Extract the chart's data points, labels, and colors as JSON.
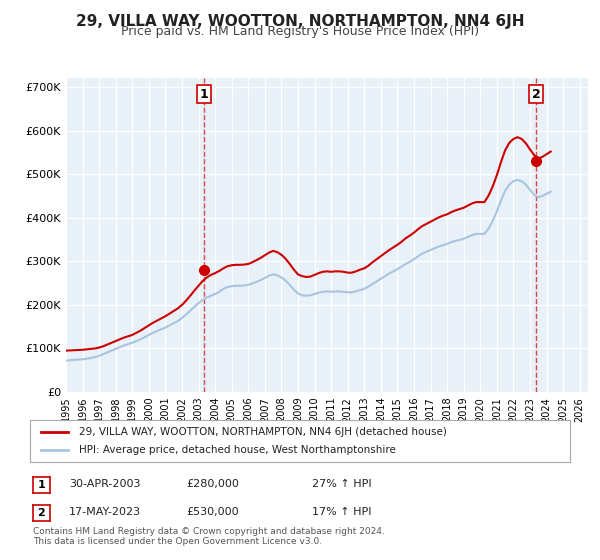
{
  "title": "29, VILLA WAY, WOOTTON, NORTHAMPTON, NN4 6JH",
  "subtitle": "Price paid vs. HM Land Registry's House Price Index (HPI)",
  "title_fontsize": 11,
  "subtitle_fontsize": 9,
  "bg_color": "#ffffff",
  "plot_bg_color": "#e8f0f8",
  "grid_color": "#ffffff",
  "hpi_color": "#aac4e0",
  "price_color": "#cc0000",
  "marker_color": "#cc0000",
  "ylim": [
    0,
    720000
  ],
  "yticks": [
    0,
    100000,
    200000,
    300000,
    400000,
    500000,
    600000,
    700000
  ],
  "ytick_labels": [
    "£0",
    "£100K",
    "£200K",
    "£300K",
    "£400K",
    "£500K",
    "£600K",
    "£700K"
  ],
  "xtick_years": [
    1995,
    1996,
    1997,
    1998,
    1999,
    2000,
    2001,
    2002,
    2003,
    2004,
    2005,
    2006,
    2007,
    2008,
    2009,
    2010,
    2011,
    2012,
    2013,
    2014,
    2015,
    2016,
    2017,
    2018,
    2019,
    2020,
    2021,
    2022,
    2023,
    2024,
    2025,
    2026
  ],
  "sale1_x": 2003.33,
  "sale1_y": 280000,
  "sale1_label": "1",
  "sale2_x": 2023.38,
  "sale2_y": 530000,
  "sale2_label": "2",
  "legend_line1": "29, VILLA WAY, WOOTTON, NORTHAMPTON, NN4 6JH (detached house)",
  "legend_line2": "HPI: Average price, detached house, West Northamptonshire",
  "ann1_num": "1",
  "ann1_date": "30-APR-2003",
  "ann1_price": "£280,000",
  "ann1_hpi": "27% ↑ HPI",
  "ann2_num": "2",
  "ann2_date": "17-MAY-2023",
  "ann2_price": "£530,000",
  "ann2_hpi": "17% ↑ HPI",
  "footer": "Contains HM Land Registry data © Crown copyright and database right 2024.\nThis data is licensed under the Open Government Licence v3.0.",
  "hpi_x": [
    1995.0,
    1995.25,
    1995.5,
    1995.75,
    1996.0,
    1996.25,
    1996.5,
    1996.75,
    1997.0,
    1997.25,
    1997.5,
    1997.75,
    1998.0,
    1998.25,
    1998.5,
    1998.75,
    1999.0,
    1999.25,
    1999.5,
    1999.75,
    2000.0,
    2000.25,
    2000.5,
    2000.75,
    2001.0,
    2001.25,
    2001.5,
    2001.75,
    2002.0,
    2002.25,
    2002.5,
    2002.75,
    2003.0,
    2003.25,
    2003.5,
    2003.75,
    2004.0,
    2004.25,
    2004.5,
    2004.75,
    2005.0,
    2005.25,
    2005.5,
    2005.75,
    2006.0,
    2006.25,
    2006.5,
    2006.75,
    2007.0,
    2007.25,
    2007.5,
    2007.75,
    2008.0,
    2008.25,
    2008.5,
    2008.75,
    2009.0,
    2009.25,
    2009.5,
    2009.75,
    2010.0,
    2010.25,
    2010.5,
    2010.75,
    2011.0,
    2011.25,
    2011.5,
    2011.75,
    2012.0,
    2012.25,
    2012.5,
    2012.75,
    2013.0,
    2013.25,
    2013.5,
    2013.75,
    2014.0,
    2014.25,
    2014.5,
    2014.75,
    2015.0,
    2015.25,
    2015.5,
    2015.75,
    2016.0,
    2016.25,
    2016.5,
    2016.75,
    2017.0,
    2017.25,
    2017.5,
    2017.75,
    2018.0,
    2018.25,
    2018.5,
    2018.75,
    2019.0,
    2019.25,
    2019.5,
    2019.75,
    2020.0,
    2020.25,
    2020.5,
    2020.75,
    2021.0,
    2021.25,
    2021.5,
    2021.75,
    2022.0,
    2022.25,
    2022.5,
    2022.75,
    2023.0,
    2023.25,
    2023.5,
    2023.75,
    2024.0,
    2024.25
  ],
  "hpi_y": [
    72000,
    73000,
    74000,
    74500,
    75000,
    76500,
    78000,
    80000,
    83000,
    87000,
    91000,
    95000,
    99000,
    103000,
    107000,
    110000,
    113000,
    117000,
    121000,
    126000,
    131000,
    136000,
    140000,
    144000,
    148000,
    153000,
    158000,
    163000,
    170000,
    178000,
    187000,
    196000,
    204000,
    211000,
    217000,
    221000,
    225000,
    230000,
    237000,
    241000,
    243000,
    244000,
    244000,
    244500,
    246000,
    249000,
    253000,
    257000,
    262000,
    267000,
    270000,
    268000,
    263000,
    256000,
    246000,
    235000,
    226000,
    222000,
    221000,
    222000,
    225000,
    228000,
    230000,
    231000,
    230000,
    231000,
    231000,
    230000,
    229000,
    229000,
    231000,
    234000,
    237000,
    242000,
    248000,
    254000,
    260000,
    266000,
    272000,
    277000,
    282000,
    288000,
    294000,
    299000,
    305000,
    312000,
    318000,
    322000,
    326000,
    330000,
    334000,
    337000,
    340000,
    344000,
    347000,
    349000,
    352000,
    356000,
    360000,
    363000,
    363000,
    363000,
    375000,
    393000,
    415000,
    440000,
    462000,
    476000,
    484000,
    487000,
    484000,
    476000,
    464000,
    453000,
    447000,
    450000,
    455000,
    460000
  ],
  "price_x": [
    1995.0,
    1995.25,
    1995.5,
    1995.75,
    1996.0,
    1996.25,
    1996.5,
    1996.75,
    1997.0,
    1997.25,
    1997.5,
    1997.75,
    1998.0,
    1998.25,
    1998.5,
    1998.75,
    1999.0,
    1999.25,
    1999.5,
    1999.75,
    2000.0,
    2000.25,
    2000.5,
    2000.75,
    2001.0,
    2001.25,
    2001.5,
    2001.75,
    2002.0,
    2002.25,
    2002.5,
    2002.75,
    2003.0,
    2003.25,
    2003.5,
    2003.75,
    2004.0,
    2004.25,
    2004.5,
    2004.75,
    2005.0,
    2005.25,
    2005.5,
    2005.75,
    2006.0,
    2006.25,
    2006.5,
    2006.75,
    2007.0,
    2007.25,
    2007.5,
    2007.75,
    2008.0,
    2008.25,
    2008.5,
    2008.75,
    2009.0,
    2009.25,
    2009.5,
    2009.75,
    2010.0,
    2010.25,
    2010.5,
    2010.75,
    2011.0,
    2011.25,
    2011.5,
    2011.75,
    2012.0,
    2012.25,
    2012.5,
    2012.75,
    2013.0,
    2013.25,
    2013.5,
    2013.75,
    2014.0,
    2014.25,
    2014.5,
    2014.75,
    2015.0,
    2015.25,
    2015.5,
    2015.75,
    2016.0,
    2016.25,
    2016.5,
    2016.75,
    2017.0,
    2017.25,
    2017.5,
    2017.75,
    2018.0,
    2018.25,
    2018.5,
    2018.75,
    2019.0,
    2019.25,
    2019.5,
    2019.75,
    2020.0,
    2020.25,
    2020.5,
    2020.75,
    2021.0,
    2021.25,
    2021.5,
    2021.75,
    2022.0,
    2022.25,
    2022.5,
    2022.75,
    2023.0,
    2023.25,
    2023.5,
    2023.75,
    2024.0,
    2024.25
  ],
  "price_y": [
    95000,
    95500,
    96000,
    96500,
    97000,
    98000,
    99000,
    100000,
    102000,
    105000,
    109000,
    113000,
    117000,
    121000,
    125000,
    128000,
    131000,
    136000,
    141000,
    147000,
    153000,
    159000,
    164000,
    169000,
    174000,
    180000,
    186000,
    192000,
    200000,
    210000,
    221000,
    233000,
    244000,
    255000,
    263000,
    269000,
    273000,
    278000,
    284000,
    289000,
    291000,
    292000,
    292000,
    292500,
    294000,
    298000,
    303000,
    308000,
    314000,
    320000,
    324000,
    321000,
    315000,
    306000,
    294000,
    281000,
    270000,
    266000,
    264000,
    265000,
    269000,
    273000,
    276000,
    277000,
    276000,
    277000,
    277000,
    276000,
    274000,
    274000,
    277000,
    281000,
    284000,
    290000,
    298000,
    305000,
    312000,
    319000,
    326000,
    332000,
    338000,
    345000,
    353000,
    359000,
    366000,
    374000,
    381000,
    386000,
    391000,
    396000,
    401000,
    405000,
    408000,
    413000,
    417000,
    420000,
    423000,
    428000,
    433000,
    436000,
    436000,
    436000,
    451000,
    472000,
    498000,
    528000,
    555000,
    572000,
    581000,
    585000,
    581000,
    571000,
    557000,
    544000,
    536000,
    540000,
    546000,
    552000
  ],
  "xlim": [
    1995.0,
    2026.5
  ]
}
